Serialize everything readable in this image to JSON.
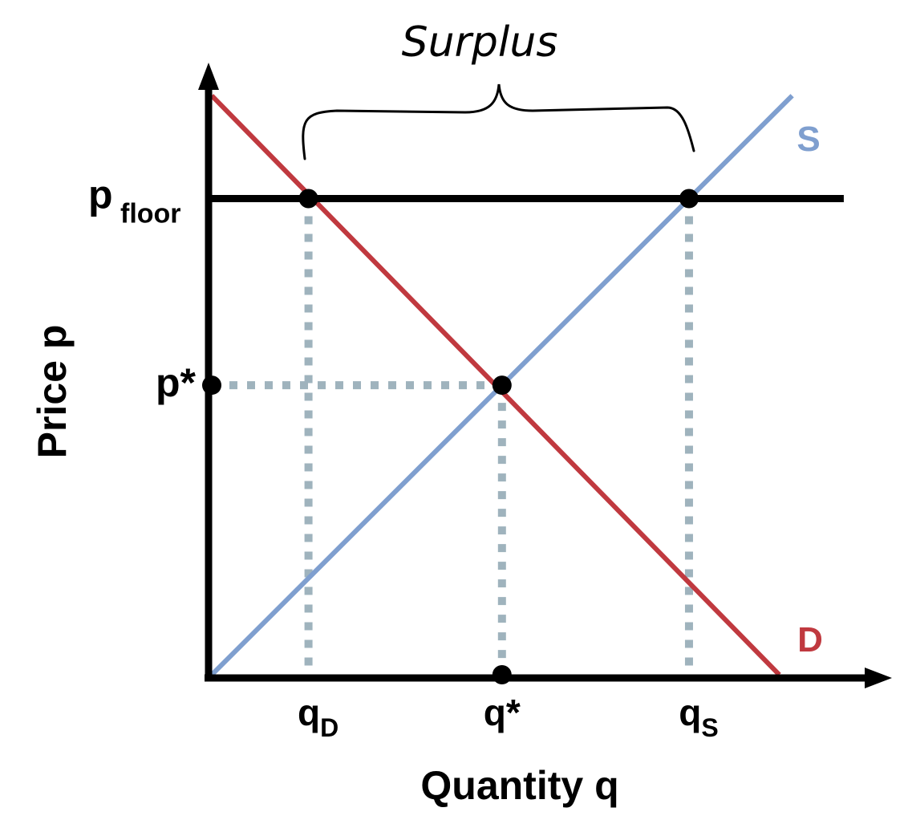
{
  "chart_data": {
    "type": "line",
    "title": "",
    "xlabel": "Quantity q",
    "ylabel": "Price p",
    "xlim": [
      0,
      10
    ],
    "ylim": [
      0,
      10
    ],
    "grid": false,
    "legend": "none",
    "series": [
      {
        "name": "S",
        "points": [
          [
            0,
            0
          ],
          [
            9,
            9
          ]
        ],
        "color": "#7f9fcf"
      },
      {
        "name": "D",
        "points": [
          [
            0,
            9
          ],
          [
            8.8,
            0
          ]
        ],
        "color": "#c0393f"
      },
      {
        "name": "",
        "points": [
          [
            0,
            7.4
          ],
          [
            9.8,
            7.4
          ]
        ],
        "color": "#000000"
      }
    ],
    "points": [
      {
        "x": 1.5,
        "y": 7.4
      },
      {
        "x": 7.4,
        "y": 7.4
      },
      {
        "x": 4.5,
        "y": 4.5
      },
      {
        "x": 0,
        "y": 4.5
      },
      {
        "x": 4.5,
        "y": 0
      }
    ],
    "x_ticks": [
      {
        "x": 1.5,
        "main": "q",
        "sub": "D"
      },
      {
        "x": 4.5,
        "main": "q*",
        "sub": ""
      },
      {
        "x": 7.4,
        "main": "q",
        "sub": "S"
      }
    ],
    "y_ticks": [
      {
        "y": 7.4,
        "main": "p",
        "sub": "floor"
      },
      {
        "y": 4.5,
        "main": "p*",
        "sub": ""
      }
    ],
    "annotation": {
      "text": "Surplus",
      "x_from": 1.5,
      "x_to": 7.4
    }
  },
  "colors": {
    "supply": "#7f9fcf",
    "demand": "#c0393f",
    "guide": "#9fb3bd",
    "axis": "#000000"
  }
}
